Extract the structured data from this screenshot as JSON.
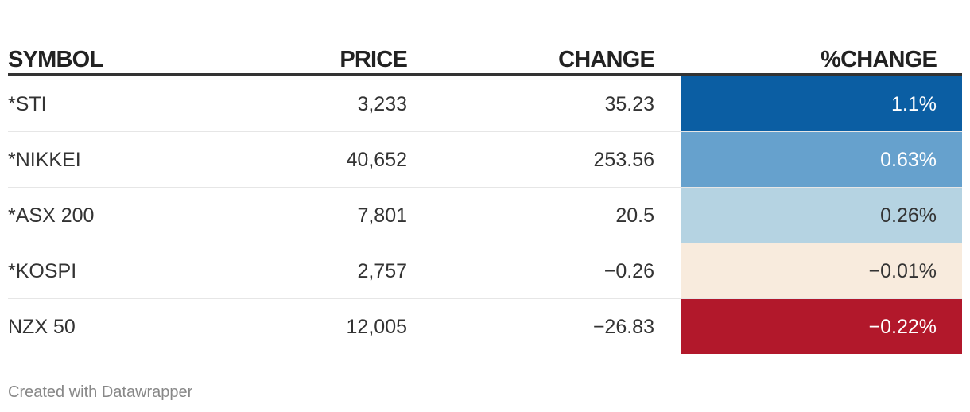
{
  "table": {
    "headers": {
      "symbol": "SYMBOL",
      "price": "PRICE",
      "change": "CHANGE",
      "pct_change": "%CHANGE"
    },
    "rows": [
      {
        "symbol": "*STI",
        "price": "3,233",
        "change": "35.23",
        "pct_change": "1.1%",
        "bg": "#0b5ea3",
        "fg": "#ffffff"
      },
      {
        "symbol": "*NIKKEI",
        "price": "40,652",
        "change": "253.56",
        "pct_change": "0.63%",
        "bg": "#66a1cd",
        "fg": "#ffffff"
      },
      {
        "symbol": "*ASX 200",
        "price": "7,801",
        "change": "20.5",
        "pct_change": "0.26%",
        "bg": "#b5d3e2",
        "fg": "#333333"
      },
      {
        "symbol": "*KOSPI",
        "price": "2,757",
        "change": "−0.26",
        "pct_change": "−0.01%",
        "bg": "#f8ebdd",
        "fg": "#333333"
      },
      {
        "symbol": "NZX 50",
        "price": "12,005",
        "change": "−26.83",
        "pct_change": "−0.22%",
        "bg": "#b2182b",
        "fg": "#ffffff"
      }
    ]
  },
  "chart_data": {
    "type": "table",
    "columns": [
      "SYMBOL",
      "PRICE",
      "CHANGE",
      "%CHANGE"
    ],
    "rows": [
      [
        "*STI",
        3233,
        35.23,
        1.1
      ],
      [
        "*NIKKEI",
        40652,
        253.56,
        0.63
      ],
      [
        "*ASX 200",
        7801,
        20.5,
        0.26
      ],
      [
        "*KOSPI",
        2757,
        -0.26,
        -0.01
      ],
      [
        "NZX 50",
        12005,
        -26.83,
        -0.22
      ]
    ]
  },
  "footer": {
    "credit": "Created with Datawrapper"
  }
}
